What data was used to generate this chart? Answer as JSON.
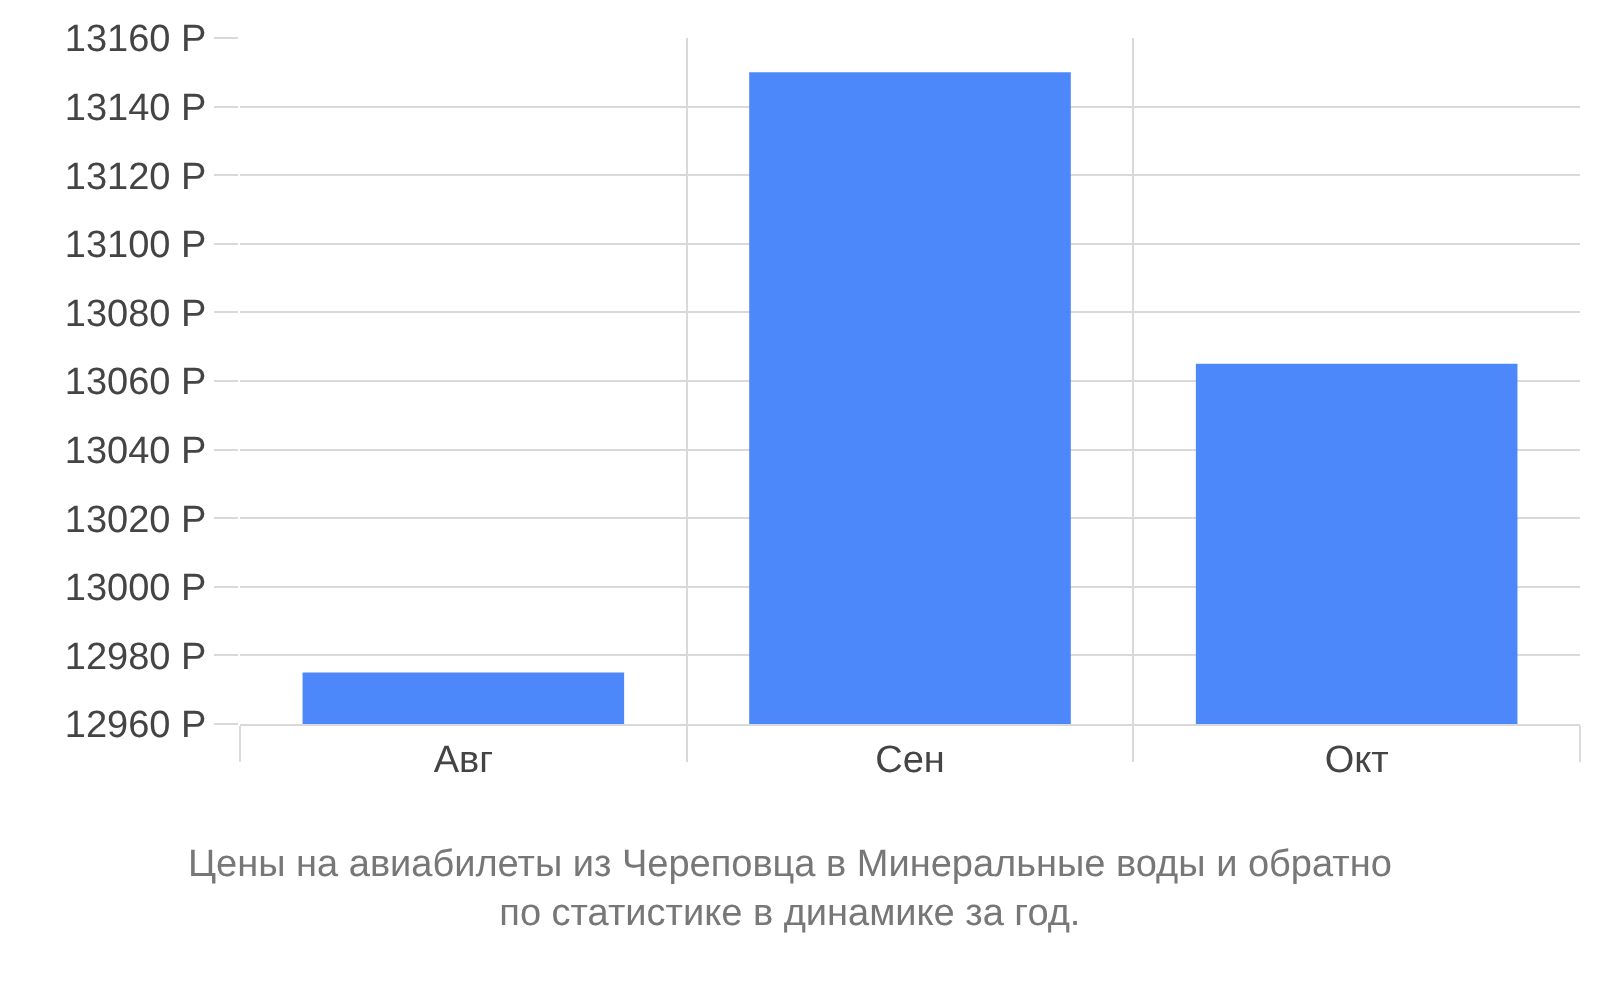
{
  "chart_data": {
    "type": "bar",
    "categories": [
      "Авг",
      "Сен",
      "Окт"
    ],
    "values": [
      12975,
      13150,
      13065
    ],
    "color": "#4d88fb",
    "ylim": [
      12960,
      13160
    ],
    "yticks": [
      {
        "value": 12960,
        "label": "12960 Р"
      },
      {
        "value": 12980,
        "label": "12980 Р"
      },
      {
        "value": 13000,
        "label": "13000 Р"
      },
      {
        "value": 13020,
        "label": "13020 Р"
      },
      {
        "value": 13040,
        "label": "13040 Р"
      },
      {
        "value": 13060,
        "label": "13060 Р"
      },
      {
        "value": 13080,
        "label": "13080 Р"
      },
      {
        "value": 13100,
        "label": "13100 Р"
      },
      {
        "value": 13120,
        "label": "13120 Р"
      },
      {
        "value": 13140,
        "label": "13140 Р"
      },
      {
        "value": 13160,
        "label": "13160 Р"
      }
    ],
    "grid": true,
    "annotations": [
      "Цены на авиабилеты из Череповца в Минеральные воды и обратно\nпо статистике в динамике за год."
    ]
  }
}
